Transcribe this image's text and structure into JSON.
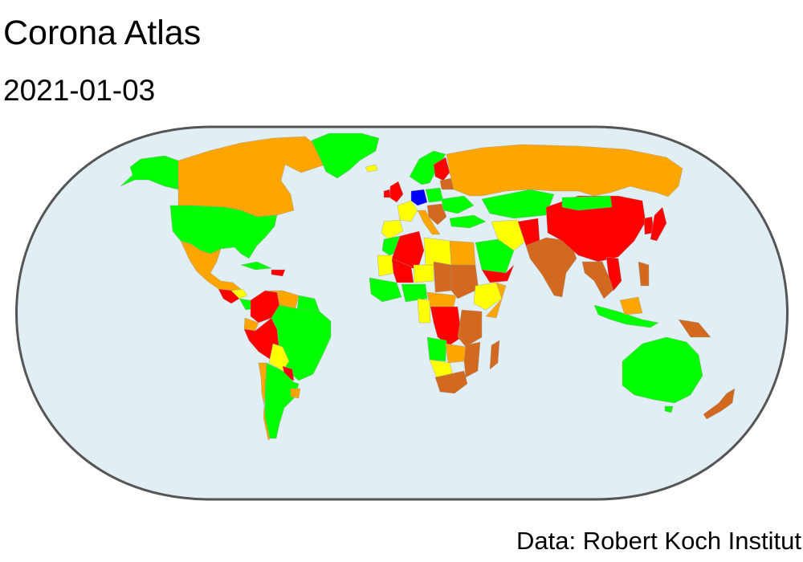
{
  "title": "Corona Atlas",
  "subtitle": "2021-01-03",
  "caption": "Data: Robert Koch Institut",
  "map": {
    "projection": "Robinson-like (rounded rectangle outline)",
    "ocean_color": "#e1eff5",
    "frame_color": "#555555",
    "risk_colors": {
      "green": "#00ff00",
      "yellow": "#ffff00",
      "orange": "#ffa500",
      "brown": "#d2691e",
      "red": "#ff0000",
      "blue": "#0000ff"
    }
  }
}
